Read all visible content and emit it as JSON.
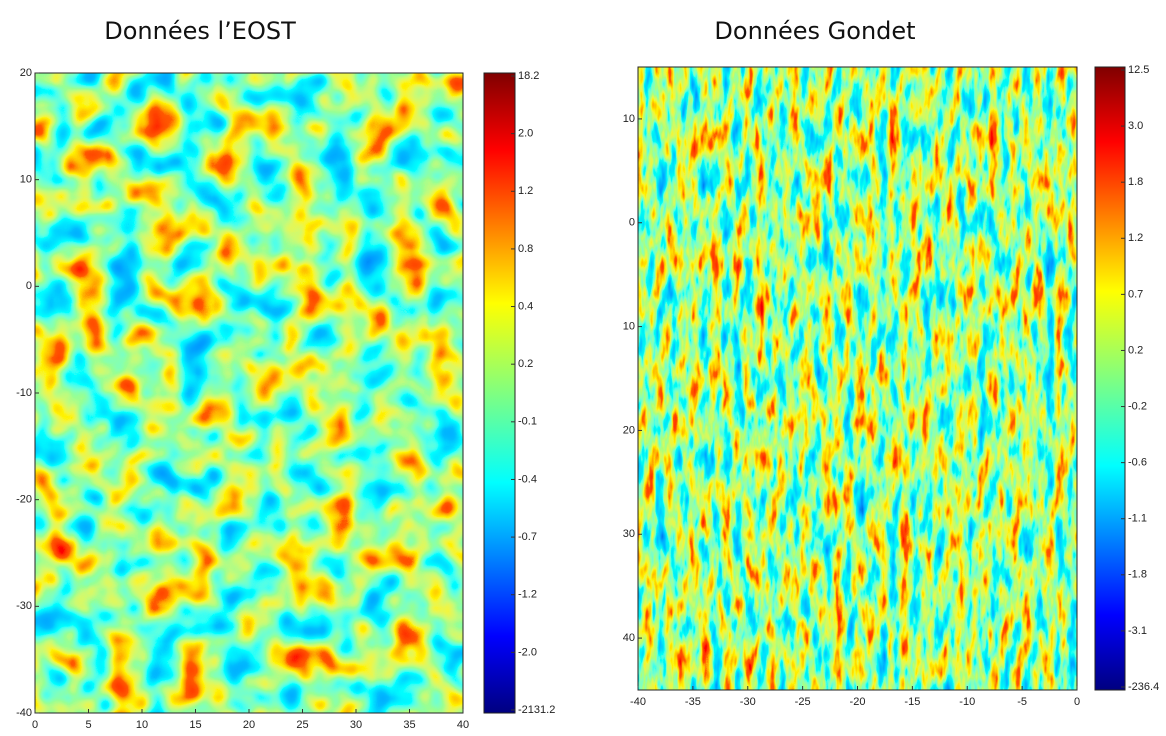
{
  "chart_data": [
    {
      "type": "heatmap",
      "title": "Données l’EOST",
      "xlim": [
        0,
        40
      ],
      "xticks": [
        0,
        5,
        10,
        15,
        20,
        25,
        30,
        35,
        40
      ],
      "ylim": [
        -40,
        20
      ],
      "yticks": [
        20,
        10,
        0,
        -10,
        -20,
        -30,
        -40
      ],
      "colorbar_labels": [
        "18.2",
        "2.0",
        "1.2",
        "0.8",
        "0.4",
        "0.2",
        "-0.1",
        "-0.4",
        "-0.7",
        "-1.2",
        "-2.0",
        "-2131.2"
      ]
    },
    {
      "type": "heatmap",
      "title": "Données Gondet",
      "xlim": [
        -40,
        0
      ],
      "xticks": [
        -40,
        -35,
        -30,
        -25,
        -20,
        -15,
        -10,
        -5,
        0
      ],
      "ylim": [
        45,
        -15
      ],
      "yticks": [
        {
          "value": -10,
          "label": "10"
        },
        0,
        10,
        20,
        30,
        40
      ],
      "colorbar_labels": [
        "12.5",
        "3.0",
        "1.8",
        "1.2",
        "0.7",
        "0.2",
        "-0.2",
        "-0.6",
        "-1.1",
        "-1.8",
        "-3.1",
        "-236.4"
      ]
    }
  ]
}
